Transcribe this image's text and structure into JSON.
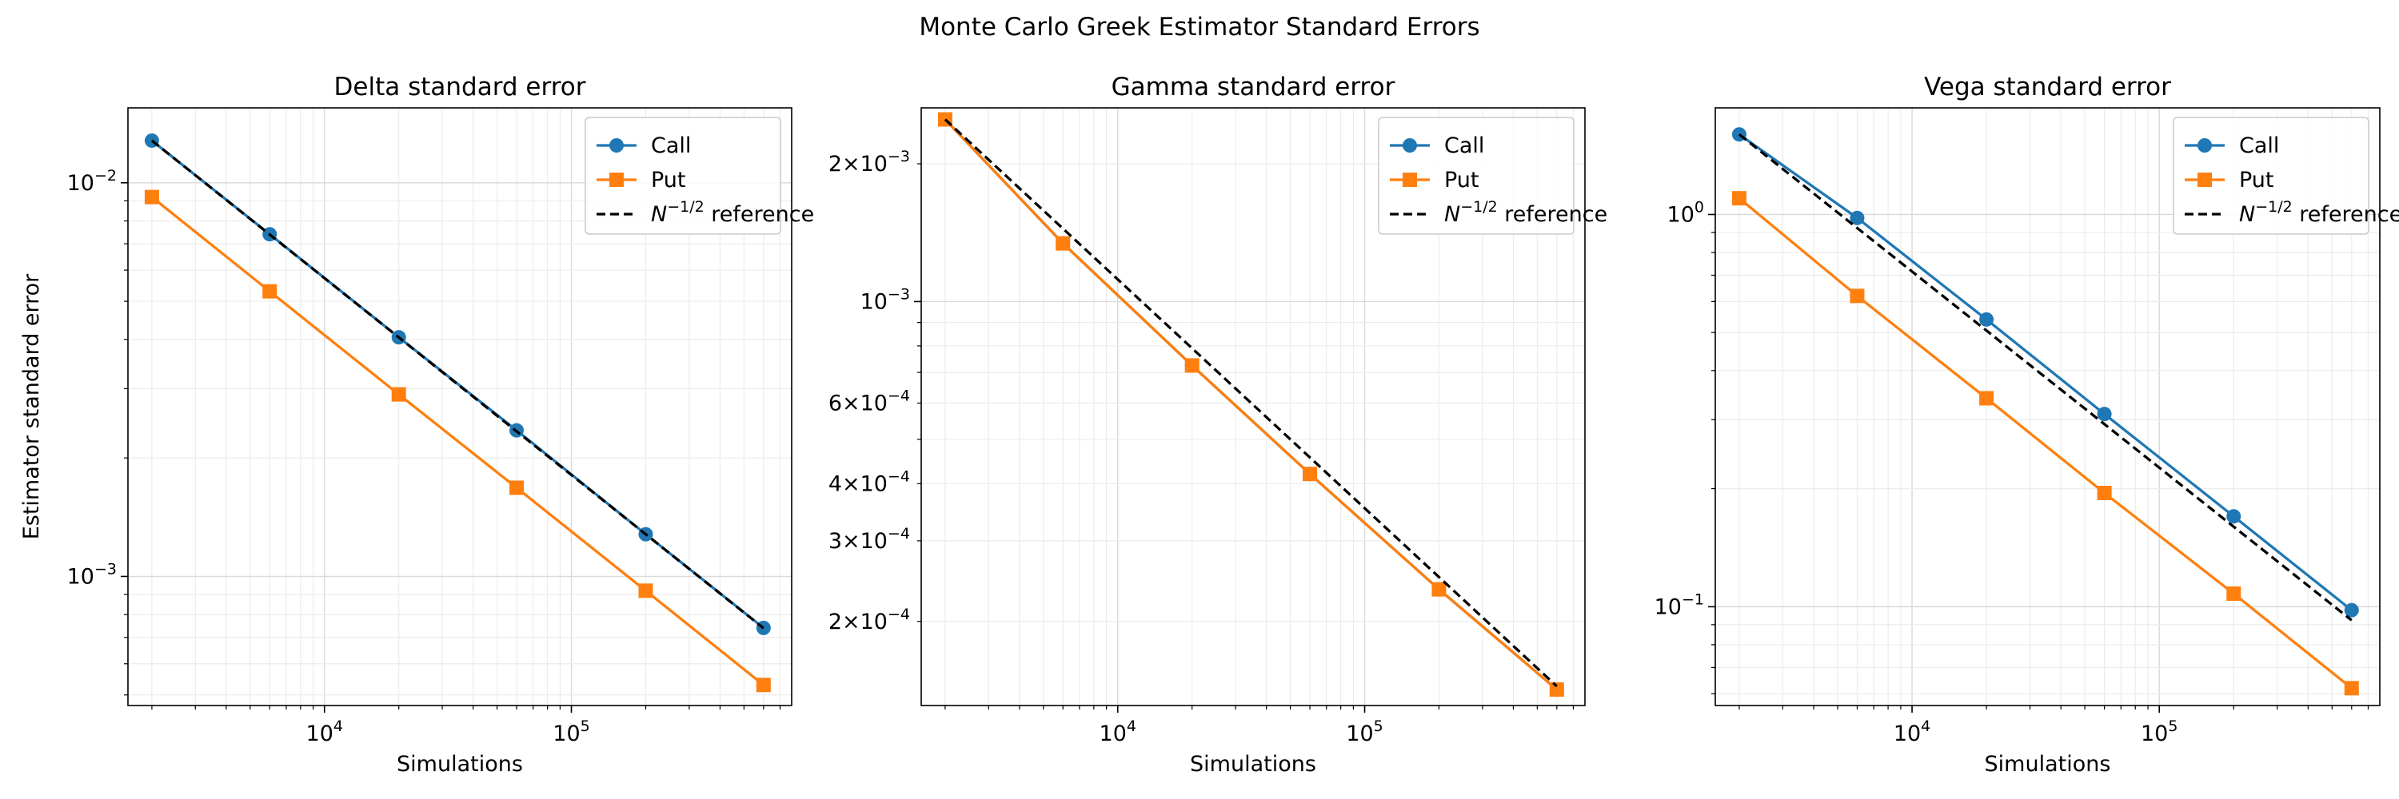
{
  "figure": {
    "suptitle": "Monte Carlo Greek Estimator Standard Errors"
  },
  "chart_data": [
    {
      "type": "line",
      "title": "Delta standard error",
      "xlabel": "Simulations",
      "ylabel": "Estimator standard error",
      "xscale": "log",
      "yscale": "log",
      "xlim": [
        1600,
        780000
      ],
      "ylim": [
        0.00047,
        0.0155
      ],
      "grid": true,
      "legend_position": "top-right",
      "x_ticks": [
        {
          "value": 10000,
          "base": "10",
          "exp": "4"
        },
        {
          "value": 100000,
          "base": "10",
          "exp": "5"
        }
      ],
      "y_ticks": [
        {
          "value": 0.001,
          "base": "10",
          "exp": "−3"
        },
        {
          "value": 0.01,
          "base": "10",
          "exp": "−2"
        }
      ],
      "x": [
        2000,
        6000,
        20000,
        60000,
        200000,
        600000
      ],
      "series": [
        {
          "name": "Call",
          "values": [
            0.0128,
            0.0074,
            0.00405,
            0.00235,
            0.00128,
            0.00074
          ],
          "color": "#1f77b4",
          "marker": "circle",
          "line": "solid"
        },
        {
          "name": "Put",
          "values": [
            0.0092,
            0.0053,
            0.0029,
            0.00168,
            0.00092,
            0.00053
          ],
          "color": "#ff7f0e",
          "marker": "square",
          "line": "solid"
        },
        {
          "name": "N⁻¹ᐟ² reference",
          "legend": {
            "base": "N",
            "exp": "−1/2",
            "rest": " reference"
          },
          "values": [
            0.0128,
            0.0073901,
            0.0040477,
            0.002337,
            0.0012801,
            0.00073901
          ],
          "color": "#000000",
          "marker": "none",
          "line": "dashed"
        }
      ]
    },
    {
      "type": "line",
      "title": "Gamma standard error",
      "xlabel": "Simulations",
      "ylabel": "",
      "xscale": "log",
      "yscale": "log",
      "xlim": [
        1600,
        780000
      ],
      "ylim": [
        0.000131,
        0.00265
      ],
      "grid": true,
      "legend_position": "top-right",
      "x_ticks": [
        {
          "value": 10000,
          "base": "10",
          "exp": "4"
        },
        {
          "value": 100000,
          "base": "10",
          "exp": "5"
        }
      ],
      "y_ticks": [
        {
          "value": 0.0002,
          "coef": "2×",
          "base": "10",
          "exp": "−4"
        },
        {
          "value": 0.0003,
          "coef": "3×",
          "base": "10",
          "exp": "−4"
        },
        {
          "value": 0.0004,
          "coef": "4×",
          "base": "10",
          "exp": "−4"
        },
        {
          "value": 0.0006,
          "coef": "6×",
          "base": "10",
          "exp": "−4"
        },
        {
          "value": 0.001,
          "coef": "",
          "base": "10",
          "exp": "−3"
        },
        {
          "value": 0.002,
          "coef": "2×",
          "base": "10",
          "exp": "−3"
        }
      ],
      "x": [
        2000,
        6000,
        20000,
        60000,
        200000,
        600000
      ],
      "series": [
        {
          "name": "Call",
          "values": [
            0.0025,
            0.00134,
            0.000725,
            0.00042,
            0.000235,
            0.000142
          ],
          "color": "#1f77b4",
          "marker": "circle",
          "line": "solid"
        },
        {
          "name": "Put",
          "values": [
            0.0025,
            0.00134,
            0.000725,
            0.00042,
            0.000235,
            0.000142
          ],
          "color": "#ff7f0e",
          "marker": "square",
          "line": "solid"
        },
        {
          "name": "N⁻¹ᐟ² reference",
          "legend": {
            "base": "N",
            "exp": "−1/2",
            "rest": " reference"
          },
          "values": [
            0.0025,
            0.0014434,
            0.00079057,
            0.00045644,
            0.00025,
            0.00014434
          ],
          "color": "#000000",
          "marker": "none",
          "line": "dashed"
        }
      ]
    },
    {
      "type": "line",
      "title": "Vega standard error",
      "xlabel": "Simulations",
      "ylabel": "",
      "xscale": "log",
      "yscale": "log",
      "xlim": [
        1600,
        780000
      ],
      "ylim": [
        0.056,
        1.87
      ],
      "grid": true,
      "legend_position": "top-right",
      "x_ticks": [
        {
          "value": 10000,
          "base": "10",
          "exp": "4"
        },
        {
          "value": 100000,
          "base": "10",
          "exp": "5"
        }
      ],
      "y_ticks": [
        {
          "value": 0.1,
          "base": "10",
          "exp": "−1"
        },
        {
          "value": 1,
          "base": "10",
          "exp": "0"
        }
      ],
      "x": [
        2000,
        6000,
        20000,
        60000,
        200000,
        600000
      ],
      "series": [
        {
          "name": "Call",
          "values": [
            1.6,
            0.98,
            0.54,
            0.31,
            0.17,
            0.098
          ],
          "color": "#1f77b4",
          "marker": "circle",
          "line": "solid"
        },
        {
          "name": "Put",
          "values": [
            1.1,
            0.62,
            0.34,
            0.195,
            0.108,
            0.062
          ],
          "color": "#ff7f0e",
          "marker": "square",
          "line": "solid"
        },
        {
          "name": "N⁻¹ᐟ² reference",
          "legend": {
            "base": "N",
            "exp": "−1/2",
            "rest": " reference"
          },
          "values": [
            1.6,
            0.92376,
            0.50596,
            0.29212,
            0.16,
            0.092376
          ],
          "color": "#000000",
          "marker": "none",
          "line": "dashed"
        }
      ]
    }
  ]
}
